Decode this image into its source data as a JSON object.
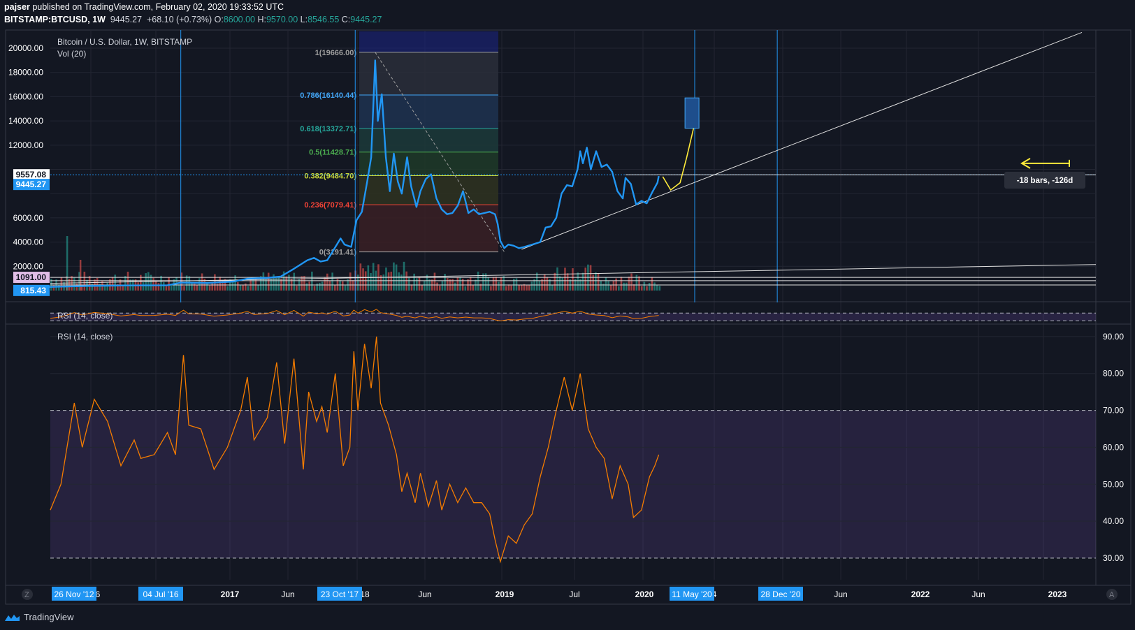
{
  "header": {
    "line1_user": "pajser",
    "line1_rest": "published on TradingView.com, February 02, 2020 19:33:52 UTC",
    "symbol": "BITSTAMP:BTCUSD, 1W",
    "last": "9445.27",
    "change": "+68.10 (+0.73%)",
    "o_label": "O:",
    "o": "8600.00",
    "h_label": "H:",
    "h": "9570.00",
    "l_label": "L:",
    "l": "8546.55",
    "c_label": "C:",
    "c": "9445.27"
  },
  "legend": {
    "main_title": "Bitcoin / U.S. Dollar, 1W, BITSTAMP",
    "vol": "Vol (20)",
    "rsi_small": "RSI (14, close)",
    "rsi_big": "RSI (14, close)"
  },
  "footer": {
    "brand": "TradingView"
  },
  "colors": {
    "bg": "#131722",
    "price": "#2196f3",
    "rsi": "#f57c00",
    "rsi_band": "#2a1e4a",
    "up": "#26a69a",
    "down": "#ef5350",
    "yellow": "#ffeb3b"
  },
  "chart_data": [
    {
      "type": "line",
      "title": "Bitcoin / U.S. Dollar, 1W, BITSTAMP",
      "y_ticks": [
        "20000.00",
        "18000.00",
        "16000.00",
        "14000.00",
        "12000.00",
        "6000.00",
        "4000.00",
        "2000.00"
      ],
      "ylim": [
        0,
        21500
      ],
      "price_labels": [
        "9557.08",
        "9445.27",
        "1091.00",
        "815.43"
      ],
      "x_ticks": [
        "6",
        "2017",
        "Jun",
        "18",
        "Jun",
        "2019",
        "Jul",
        "2020",
        "4",
        "Jun",
        "2022",
        "Jun",
        "2023"
      ],
      "x_highlight": [
        "26 Nov '12",
        "04 Jul '16",
        "23 Oct '17",
        "11 May '20",
        "28 Dec '20"
      ],
      "fib_levels": [
        {
          "label": "1(19666.00)",
          "value": 19666.0,
          "color": "#9e9e9e"
        },
        {
          "label": "0.786(16140.44)",
          "value": 16140.44,
          "color": "#42a5f5"
        },
        {
          "label": "0.618(13372.71)",
          "value": 13372.71,
          "color": "#26a69a"
        },
        {
          "label": "0.5(11428.71)",
          "value": 11428.71,
          "color": "#4caf50"
        },
        {
          "label": "0.382(9484.70)",
          "value": 9484.7,
          "color": "#cddc39"
        },
        {
          "label": "0.236(7079.41)",
          "value": 7079.41,
          "color": "#f44336"
        },
        {
          "label": "0(3191.41)",
          "value": 3191.41,
          "color": "#9e9e9e"
        }
      ],
      "price_series": [
        [
          2015.5,
          300
        ],
        [
          2015.8,
          380
        ],
        [
          2016.1,
          420
        ],
        [
          2016.4,
          440
        ],
        [
          2016.5,
          650
        ],
        [
          2016.7,
          620
        ],
        [
          2016.9,
          750
        ],
        [
          2017.0,
          980
        ],
        [
          2017.15,
          1050
        ],
        [
          2017.25,
          1150
        ],
        [
          2017.35,
          1800
        ],
        [
          2017.45,
          2500
        ],
        [
          2017.5,
          2700
        ],
        [
          2017.55,
          2400
        ],
        [
          2017.6,
          2500
        ],
        [
          2017.65,
          3400
        ],
        [
          2017.7,
          4300
        ],
        [
          2017.73,
          3800
        ],
        [
          2017.78,
          3600
        ],
        [
          2017.82,
          5800
        ],
        [
          2017.86,
          6500
        ],
        [
          2017.9,
          9000
        ],
        [
          2017.93,
          11000
        ],
        [
          2017.96,
          19000
        ],
        [
          2017.98,
          14000
        ],
        [
          2018.01,
          16200
        ],
        [
          2018.04,
          11000
        ],
        [
          2018.07,
          8200
        ],
        [
          2018.1,
          11300
        ],
        [
          2018.13,
          9000
        ],
        [
          2018.16,
          8000
        ],
        [
          2018.2,
          11000
        ],
        [
          2018.23,
          8600
        ],
        [
          2018.27,
          6900
        ],
        [
          2018.3,
          8200
        ],
        [
          2018.34,
          9200
        ],
        [
          2018.38,
          9600
        ],
        [
          2018.42,
          7600
        ],
        [
          2018.46,
          6700
        ],
        [
          2018.5,
          6300
        ],
        [
          2018.54,
          6400
        ],
        [
          2018.58,
          7000
        ],
        [
          2018.62,
          8200
        ],
        [
          2018.66,
          6400
        ],
        [
          2018.7,
          6700
        ],
        [
          2018.74,
          6300
        ],
        [
          2018.78,
          6400
        ],
        [
          2018.82,
          6500
        ],
        [
          2018.86,
          6300
        ],
        [
          2018.88,
          5500
        ],
        [
          2018.9,
          4100
        ],
        [
          2018.93,
          3500
        ],
        [
          2018.96,
          3800
        ],
        [
          2019.0,
          3700
        ],
        [
          2019.04,
          3500
        ],
        [
          2019.08,
          3600
        ],
        [
          2019.14,
          3800
        ],
        [
          2019.2,
          4000
        ],
        [
          2019.24,
          5200
        ],
        [
          2019.28,
          5300
        ],
        [
          2019.32,
          6000
        ],
        [
          2019.36,
          8000
        ],
        [
          2019.4,
          8700
        ],
        [
          2019.44,
          8600
        ],
        [
          2019.48,
          10000
        ],
        [
          2019.5,
          11500
        ],
        [
          2019.52,
          10500
        ],
        [
          2019.55,
          11800
        ],
        [
          2019.58,
          10000
        ],
        [
          2019.62,
          11500
        ],
        [
          2019.66,
          10200
        ],
        [
          2019.7,
          10400
        ],
        [
          2019.74,
          9800
        ],
        [
          2019.78,
          8200
        ],
        [
          2019.82,
          7600
        ],
        [
          2019.84,
          9300
        ],
        [
          2019.88,
          8800
        ],
        [
          2019.92,
          7100
        ],
        [
          2019.96,
          7400
        ],
        [
          2020.0,
          7200
        ],
        [
          2020.04,
          8100
        ],
        [
          2020.08,
          8900
        ],
        [
          2020.09,
          9445
        ]
      ],
      "projection": {
        "color": "#ffeb3b",
        "points": [
          [
            2020.12,
            9400
          ],
          [
            2020.18,
            8300
          ],
          [
            2020.25,
            8900
          ],
          [
            2020.3,
            11000
          ],
          [
            2020.36,
            13800
          ]
        ]
      },
      "annotation": "-18 bars, -126d"
    },
    {
      "type": "bar",
      "title": "Vol (20)"
    },
    {
      "type": "line",
      "title": "RSI (14, close)",
      "y_ticks": [
        "90.00",
        "80.00",
        "70.00",
        "60.00",
        "50.00",
        "40.00",
        "30.00"
      ],
      "ylim": [
        23,
        93
      ],
      "bands": [
        70,
        30
      ],
      "rsi_series": [
        [
          2015.52,
          43
        ],
        [
          2015.6,
          50
        ],
        [
          2015.7,
          72
        ],
        [
          2015.76,
          60
        ],
        [
          2015.85,
          73
        ],
        [
          2015.95,
          67
        ],
        [
          2016.05,
          55
        ],
        [
          2016.15,
          62
        ],
        [
          2016.2,
          57
        ],
        [
          2016.3,
          58
        ],
        [
          2016.4,
          64
        ],
        [
          2016.46,
          58
        ],
        [
          2016.52,
          85
        ],
        [
          2016.56,
          66
        ],
        [
          2016.65,
          65
        ],
        [
          2016.75,
          54
        ],
        [
          2016.85,
          60
        ],
        [
          2016.95,
          70
        ],
        [
          2017.0,
          79
        ],
        [
          2017.05,
          62
        ],
        [
          2017.15,
          68
        ],
        [
          2017.22,
          83
        ],
        [
          2017.28,
          61
        ],
        [
          2017.35,
          84
        ],
        [
          2017.42,
          54
        ],
        [
          2017.46,
          75
        ],
        [
          2017.52,
          67
        ],
        [
          2017.56,
          71
        ],
        [
          2017.6,
          64
        ],
        [
          2017.66,
          80
        ],
        [
          2017.72,
          55
        ],
        [
          2017.77,
          60
        ],
        [
          2017.8,
          86
        ],
        [
          2017.83,
          70
        ],
        [
          2017.88,
          88
        ],
        [
          2017.93,
          76
        ],
        [
          2017.97,
          90
        ],
        [
          2018.0,
          72
        ],
        [
          2018.06,
          66
        ],
        [
          2018.12,
          58
        ],
        [
          2018.16,
          48
        ],
        [
          2018.2,
          53
        ],
        [
          2018.26,
          45
        ],
        [
          2018.3,
          53
        ],
        [
          2018.36,
          44
        ],
        [
          2018.42,
          51
        ],
        [
          2018.46,
          43
        ],
        [
          2018.52,
          50
        ],
        [
          2018.58,
          45
        ],
        [
          2018.64,
          49
        ],
        [
          2018.7,
          45
        ],
        [
          2018.76,
          45
        ],
        [
          2018.82,
          42
        ],
        [
          2018.86,
          35
        ],
        [
          2018.9,
          29
        ],
        [
          2018.96,
          36
        ],
        [
          2019.02,
          34
        ],
        [
          2019.08,
          39
        ],
        [
          2019.14,
          42
        ],
        [
          2019.2,
          52
        ],
        [
          2019.26,
          60
        ],
        [
          2019.32,
          70
        ],
        [
          2019.38,
          79
        ],
        [
          2019.44,
          70
        ],
        [
          2019.5,
          80
        ],
        [
          2019.56,
          65
        ],
        [
          2019.62,
          60
        ],
        [
          2019.68,
          57
        ],
        [
          2019.74,
          46
        ],
        [
          2019.8,
          55
        ],
        [
          2019.86,
          50
        ],
        [
          2019.9,
          41
        ],
        [
          2019.96,
          43
        ],
        [
          2020.02,
          52
        ],
        [
          2020.06,
          55
        ],
        [
          2020.09,
          58
        ]
      ]
    }
  ]
}
